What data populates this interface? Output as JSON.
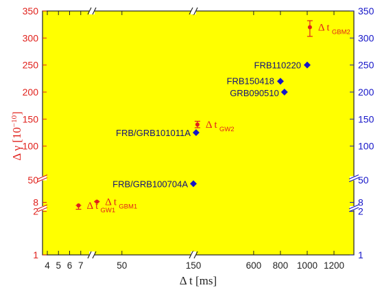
{
  "chart_data": {
    "type": "scatter",
    "title": "",
    "xlabel": "Δ t [ms]",
    "ylabel_left": "Δ γ [10",
    "ylabel_left_exp": "−10",
    "ylabel_left_close": "]",
    "x_ticks": [
      "4",
      "5",
      "6",
      "7",
      "50",
      "150",
      "600",
      "800",
      "1000",
      "1200"
    ],
    "y_ticks_left": [
      "1",
      "2",
      "8",
      "50",
      "100",
      "150",
      "200",
      "250",
      "300",
      "350"
    ],
    "y_ticks_right": [
      "1",
      "2",
      "8",
      "50",
      "100",
      "150",
      "200",
      "250",
      "300",
      "350"
    ],
    "axis_breaks": {
      "x": [
        8,
        150
      ],
      "y": [
        2.2,
        50
      ]
    },
    "grid": false,
    "background": "#ffff00",
    "colors": {
      "red": "#e0201b",
      "blue": "#1515c8",
      "blue_label": "#10107a"
    },
    "series": [
      {
        "marker": "diamond",
        "color": "#1515c8",
        "points": [
          {
            "x": 150,
            "y": 43,
            "label": "FRB/GRB100704A"
          },
          {
            "x": 170,
            "y": 125,
            "label": "FRB/GRB101011A"
          },
          {
            "x": 830,
            "y": 200,
            "label": "GRB090510"
          },
          {
            "x": 800,
            "y": 220,
            "label": "FRB150418"
          },
          {
            "x": 1000,
            "y": 250,
            "label": "FRB110220"
          }
        ]
      },
      {
        "marker": "circle",
        "color": "#e0201b",
        "points": [
          {
            "x": 6.8,
            "y": 2.2,
            "yerr": [
              2.07,
              2.37
            ],
            "label": "Δ t",
            "sub": "GW1"
          },
          {
            "x": 15,
            "y": 9.3,
            "yerr": [
              8.9,
              9.85
            ],
            "label": "Δ t",
            "sub": "GBM1"
          },
          {
            "x": 180,
            "y": 140,
            "yerr": [
              134,
              146
            ],
            "label": "Δ t",
            "sub": "GW2"
          },
          {
            "x": 1020,
            "y": 320,
            "yerr": [
              303,
              332
            ],
            "label": "Δ t",
            "sub": "GBM2"
          }
        ]
      }
    ]
  }
}
